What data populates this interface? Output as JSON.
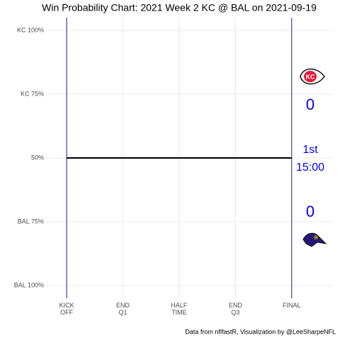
{
  "chart_data": {
    "type": "line",
    "title": "Win Probability Chart: 2021 Week 2 KC @ BAL on 2021-09-19",
    "caption": "Data from nflfastR, Visualization by @LeeSharpeNFL",
    "x": [
      0,
      60
    ],
    "series": [
      {
        "color": "#000000",
        "values": [
          50,
          50
        ]
      }
    ],
    "xlim": [
      -5.5,
      71
    ],
    "xticks": [
      {
        "value": 0,
        "label": "KICK\nOFF"
      },
      {
        "value": 15,
        "label": "END\nQ1"
      },
      {
        "value": 30,
        "label": "HALF\nTIME"
      },
      {
        "value": 45,
        "label": "END\nQ3"
      },
      {
        "value": 60,
        "label": "FINAL"
      }
    ],
    "ylim": [
      -5,
      105
    ],
    "yticks": [
      {
        "value": 100,
        "label": "KC 100%"
      },
      {
        "value": 75,
        "label": "KC 75%"
      },
      {
        "value": 50,
        "label": "50%"
      },
      {
        "value": 25,
        "label": "BAL 75%"
      },
      {
        "value": 0,
        "label": "BAL 100%"
      }
    ],
    "grid": true,
    "vlines": [
      0,
      60
    ],
    "vline_color": "#1f1f8f",
    "annotation_color": "#0000ff",
    "annotations": {
      "home_away_top_score": "0",
      "quarter": "1st",
      "clock": "15:00",
      "bottom_score": "0"
    }
  }
}
